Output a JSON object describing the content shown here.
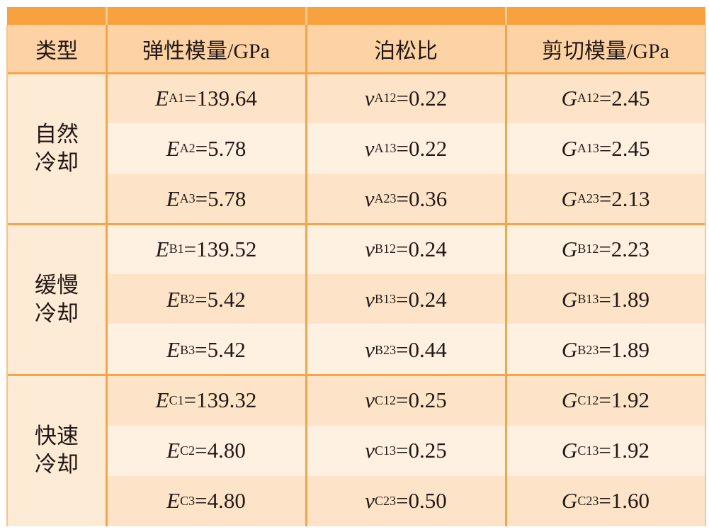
{
  "header": {
    "columns": [
      "类型",
      "弹性模量/GPa",
      "泊松比",
      "剪切模量/GPa"
    ]
  },
  "table": {
    "groups": [
      {
        "label": [
          "自然",
          "冷却"
        ],
        "rows": [
          [
            {
              "symbol": "E",
              "sub": "A1",
              "text": "=139.64"
            },
            {
              "symbol": "v",
              "sub": "A12",
              "text": "=0.22"
            },
            {
              "symbol": "G",
              "sub": "A12",
              "text": "=2.45"
            }
          ],
          [
            {
              "symbol": "E",
              "sub": "A2",
              "text": "=5.78"
            },
            {
              "symbol": "v",
              "sub": "A13",
              "text": "=0.22"
            },
            {
              "symbol": "G",
              "sub": "A13",
              "text": "=2.45"
            }
          ],
          [
            {
              "symbol": "E",
              "sub": "A3",
              "text": "=5.78"
            },
            {
              "symbol": "v",
              "sub": "A23",
              "text": "=0.36"
            },
            {
              "symbol": "G",
              "sub": "A23",
              "text": "=2.13"
            }
          ]
        ]
      },
      {
        "label": [
          "缓慢",
          "冷却"
        ],
        "rows": [
          [
            {
              "symbol": "E",
              "sub": "B1",
              "text": "=139.52"
            },
            {
              "symbol": "v",
              "sub": "B12",
              "text": "=0.24"
            },
            {
              "symbol": "G",
              "sub": "B12",
              "text": "=2.23"
            }
          ],
          [
            {
              "symbol": "E",
              "sub": "B2",
              "text": "=5.42"
            },
            {
              "symbol": "v",
              "sub": "B13",
              "text": "=0.24"
            },
            {
              "symbol": "G",
              "sub": "B13",
              "text": "=1.89"
            }
          ],
          [
            {
              "symbol": "E",
              "sub": "B3",
              "text": "=5.42"
            },
            {
              "symbol": "v",
              "sub": "B23",
              "text": "=0.44"
            },
            {
              "symbol": "G",
              "sub": "B23",
              "text": "=1.89"
            }
          ]
        ]
      },
      {
        "label": [
          "快速",
          "冷却"
        ],
        "rows": [
          [
            {
              "symbol": "E",
              "sub": "C1",
              "text": "=139.32"
            },
            {
              "symbol": "v",
              "sub": "C12",
              "text": "=0.25"
            },
            {
              "symbol": "G",
              "sub": "C12",
              "text": "=1.92"
            }
          ],
          [
            {
              "symbol": "E",
              "sub": "C2",
              "text": "=4.80"
            },
            {
              "symbol": "v",
              "sub": "C13",
              "text": "=0.25"
            },
            {
              "symbol": "G",
              "sub": "C13",
              "text": "=1.92"
            }
          ],
          [
            {
              "symbol": "E",
              "sub": "C3",
              "text": "=4.80"
            },
            {
              "symbol": "v",
              "sub": "C23",
              "text": "=0.50"
            },
            {
              "symbol": "G",
              "sub": "C23",
              "text": "=1.60"
            }
          ]
        ]
      }
    ]
  }
}
